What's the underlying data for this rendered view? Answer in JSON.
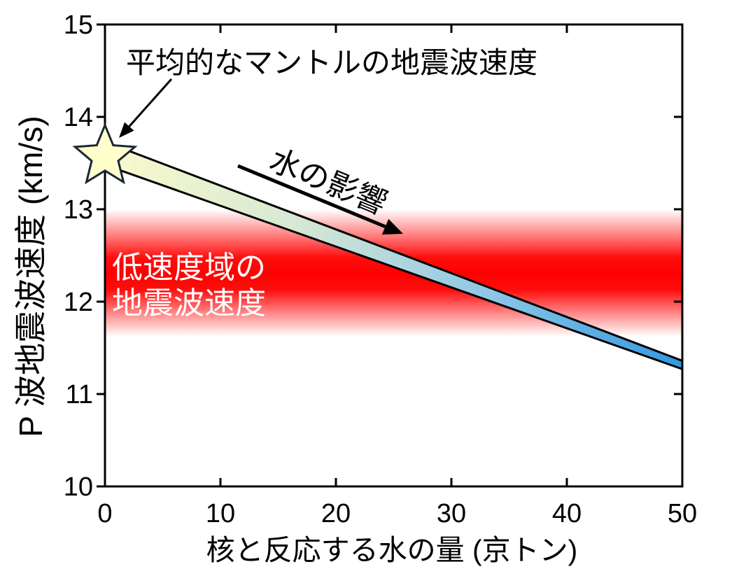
{
  "chart_data": {
    "type": "area",
    "xlabel": "核と反応する水の量 (京トン)",
    "ylabel": "P 波地震波速度 (km/s)",
    "xlim": [
      0,
      50
    ],
    "ylim": [
      10,
      15
    ],
    "xticks": [
      0,
      10,
      20,
      30,
      40,
      50
    ],
    "yticks": [
      10,
      11,
      12,
      13,
      14,
      15
    ],
    "grid": false,
    "water_effect_band": {
      "x": [
        0,
        50
      ],
      "upper": [
        13.73,
        11.36
      ],
      "lower": [
        13.48,
        11.27
      ],
      "colors": [
        "#fafacc",
        "#d6e8d4",
        "#8ec6e6",
        "#2f9ae0"
      ],
      "edge_color": "#000000"
    },
    "average_mantle": {
      "x": 0,
      "y": 13.57,
      "marker": "star",
      "fill": "#ffffcc",
      "stroke": "#1c2833",
      "label": "平均的なマントルの地震波速度"
    },
    "low_velocity_zone": {
      "y_range": [
        11.62,
        13.0
      ],
      "peak": 12.3,
      "color": "#ff0000",
      "label": [
        "低速度域の",
        "地震波速度"
      ]
    },
    "trend": {
      "label": "水の影響"
    }
  }
}
